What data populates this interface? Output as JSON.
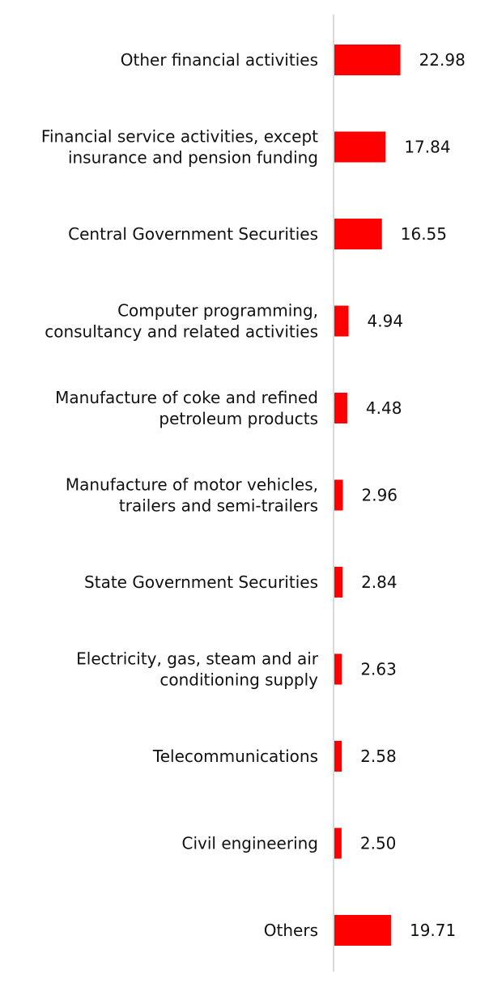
{
  "chart_data": {
    "type": "bar",
    "orientation": "horizontal",
    "bar_color": "#ff0000",
    "axis_color": "#d9d9d9",
    "grid": false,
    "legend": "none",
    "categories": [
      [
        "Other financial activities"
      ],
      [
        "Financial service activities, except",
        "insurance and pension funding"
      ],
      [
        "Central Government Securities"
      ],
      [
        "Computer programming,",
        "consultancy and related activities"
      ],
      [
        "Manufacture of coke and refined",
        "petroleum products"
      ],
      [
        "Manufacture of motor vehicles,",
        "trailers and semi-trailers"
      ],
      [
        "State Government Securities"
      ],
      [
        "Electricity, gas, steam and air",
        "conditioning supply"
      ],
      [
        "Telecommunications"
      ],
      [
        "Civil engineering"
      ],
      [
        "Others"
      ]
    ],
    "values": [
      22.98,
      17.84,
      16.55,
      4.94,
      4.48,
      2.96,
      2.84,
      2.63,
      2.58,
      2.5,
      19.71
    ],
    "value_labels": [
      "22.98",
      "17.84",
      "16.55",
      "4.94",
      "4.48",
      "2.96",
      "2.84",
      "2.63",
      "2.58",
      "2.50",
      "19.71"
    ]
  }
}
